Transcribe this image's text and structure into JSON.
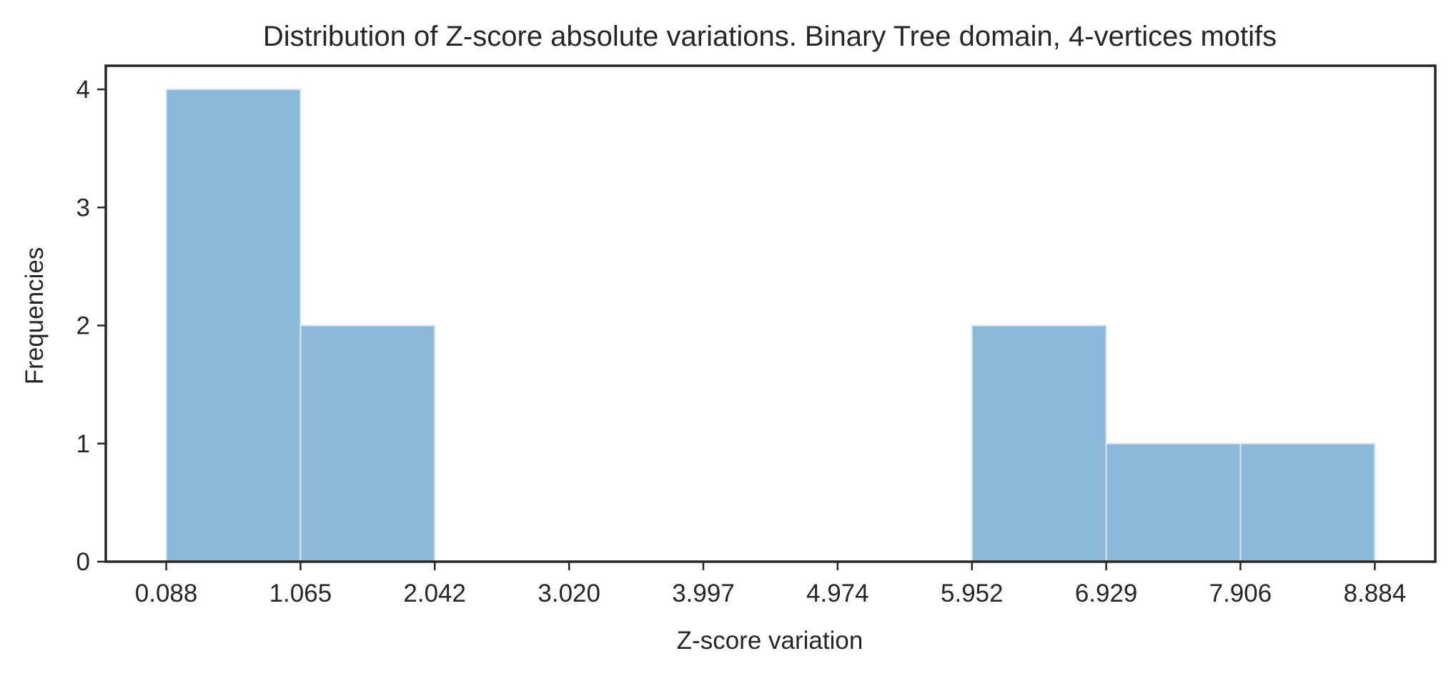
{
  "chart_data": {
    "type": "bar",
    "title": "Distribution of Z-score absolute variations. Binary Tree domain, 4-vertices motifs",
    "xlabel": "Z-score variation",
    "ylabel": "Frequencies",
    "bin_edges": [
      0.088,
      1.065,
      2.042,
      3.02,
      3.997,
      4.974,
      5.952,
      6.929,
      7.906,
      8.884
    ],
    "values": [
      4,
      2,
      0,
      0,
      0,
      0,
      2,
      1,
      1
    ],
    "x_tick_labels": [
      "0.088",
      "1.065",
      "2.042",
      "3.020",
      "3.997",
      "4.974",
      "5.952",
      "6.929",
      "7.906",
      "8.884"
    ],
    "y_ticks": [
      0,
      1,
      2,
      3,
      4
    ],
    "y_tick_labels": [
      "0",
      "1",
      "2",
      "3",
      "4"
    ],
    "ylim": [
      0,
      4.2
    ],
    "xlim": [
      -0.352,
      9.324
    ],
    "grid": false,
    "colors": {
      "bar": "#8db9d9",
      "bar_edge": "#d6e6f2",
      "axis": "#262626"
    }
  }
}
